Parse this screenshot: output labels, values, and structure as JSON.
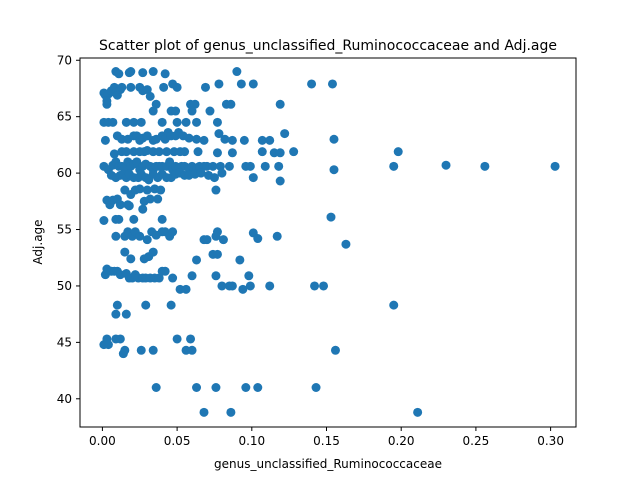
{
  "chart_data": {
    "type": "scatter",
    "title": "Scatter plot of genus_unclassified_Ruminococcaceae and Adj.age",
    "xlabel": "genus_unclassified_Ruminococcaceae",
    "ylabel": "Adj.age",
    "xlim": [
      -0.015,
      0.317
    ],
    "ylim": [
      37.5,
      70.2
    ],
    "xticks": [
      0.0,
      0.05,
      0.1,
      0.15,
      0.2,
      0.25,
      0.3
    ],
    "xtick_labels": [
      "0.00",
      "0.05",
      "0.10",
      "0.15",
      "0.20",
      "0.25",
      "0.30"
    ],
    "yticks": [
      40,
      45,
      50,
      55,
      60,
      65,
      70
    ],
    "ytick_labels": [
      "40",
      "45",
      "50",
      "55",
      "60",
      "65",
      "70"
    ],
    "grid": false,
    "marker_color": "#1f77b4",
    "points": [
      [
        0.001,
        67.1
      ],
      [
        0.002,
        66.9
      ],
      [
        0.004,
        67.0
      ],
      [
        0.006,
        67.3
      ],
      [
        0.008,
        67.6
      ],
      [
        0.009,
        67.1
      ],
      [
        0.01,
        66.9
      ],
      [
        0.012,
        67.4
      ],
      [
        0.013,
        67.6
      ],
      [
        0.019,
        67.6
      ],
      [
        0.025,
        67.6
      ],
      [
        0.027,
        67.3
      ],
      [
        0.03,
        67.4
      ],
      [
        0.032,
        66.8
      ],
      [
        0.041,
        67.6
      ],
      [
        0.047,
        67.9
      ],
      [
        0.05,
        67.6
      ],
      [
        0.069,
        67.6
      ],
      [
        0.078,
        67.9
      ],
      [
        0.093,
        67.9
      ],
      [
        0.101,
        67.9
      ],
      [
        0.14,
        67.9
      ],
      [
        0.154,
        67.9
      ],
      [
        0.009,
        69.0
      ],
      [
        0.011,
        68.8
      ],
      [
        0.018,
        68.9
      ],
      [
        0.019,
        69.0
      ],
      [
        0.027,
        68.9
      ],
      [
        0.034,
        69.0
      ],
      [
        0.042,
        68.8
      ],
      [
        0.09,
        69.0
      ],
      [
        0.003,
        66.1
      ],
      [
        0.003,
        66.4
      ],
      [
        0.036,
        66.1
      ],
      [
        0.059,
        66.1
      ],
      [
        0.062,
        66.1
      ],
      [
        0.083,
        66.1
      ],
      [
        0.086,
        66.1
      ],
      [
        0.119,
        66.1
      ],
      [
        0.001,
        64.5
      ],
      [
        0.004,
        64.5
      ],
      [
        0.007,
        64.5
      ],
      [
        0.016,
        64.5
      ],
      [
        0.021,
        64.5
      ],
      [
        0.026,
        64.5
      ],
      [
        0.04,
        64.5
      ],
      [
        0.05,
        64.5
      ],
      [
        0.056,
        64.5
      ],
      [
        0.063,
        64.5
      ],
      [
        0.077,
        64.5
      ],
      [
        0.034,
        65.5
      ],
      [
        0.046,
        65.5
      ],
      [
        0.049,
        65.5
      ],
      [
        0.06,
        65.5
      ],
      [
        0.072,
        65.5
      ],
      [
        0.002,
        62.9
      ],
      [
        0.01,
        63.3
      ],
      [
        0.013,
        63.0
      ],
      [
        0.017,
        63.0
      ],
      [
        0.021,
        63.3
      ],
      [
        0.023,
        63.3
      ],
      [
        0.025,
        62.9
      ],
      [
        0.027,
        63.1
      ],
      [
        0.03,
        63.3
      ],
      [
        0.034,
        62.9
      ],
      [
        0.036,
        63.0
      ],
      [
        0.04,
        63.3
      ],
      [
        0.042,
        63.0
      ],
      [
        0.044,
        63.6
      ],
      [
        0.046,
        63.3
      ],
      [
        0.049,
        63.3
      ],
      [
        0.051,
        63.6
      ],
      [
        0.054,
        63.3
      ],
      [
        0.058,
        63.1
      ],
      [
        0.063,
        63.0
      ],
      [
        0.068,
        62.9
      ],
      [
        0.078,
        63.5
      ],
      [
        0.082,
        63.0
      ],
      [
        0.087,
        62.9
      ],
      [
        0.095,
        62.9
      ],
      [
        0.107,
        62.9
      ],
      [
        0.112,
        62.9
      ],
      [
        0.122,
        63.5
      ],
      [
        0.155,
        63.0
      ],
      [
        0.008,
        61.7
      ],
      [
        0.013,
        61.9
      ],
      [
        0.016,
        61.9
      ],
      [
        0.021,
        61.9
      ],
      [
        0.025,
        61.9
      ],
      [
        0.028,
        61.9
      ],
      [
        0.03,
        62.0
      ],
      [
        0.034,
        61.9
      ],
      [
        0.038,
        61.9
      ],
      [
        0.043,
        61.9
      ],
      [
        0.048,
        61.9
      ],
      [
        0.052,
        61.9
      ],
      [
        0.055,
        61.9
      ],
      [
        0.064,
        61.9
      ],
      [
        0.077,
        61.8
      ],
      [
        0.087,
        61.8
      ],
      [
        0.107,
        61.9
      ],
      [
        0.115,
        61.8
      ],
      [
        0.119,
        61.8
      ],
      [
        0.128,
        61.9
      ],
      [
        0.198,
        61.9
      ],
      [
        0.001,
        60.6
      ],
      [
        0.004,
        60.3
      ],
      [
        0.007,
        60.7
      ],
      [
        0.009,
        61.0
      ],
      [
        0.011,
        60.6
      ],
      [
        0.013,
        60.6
      ],
      [
        0.015,
        60.4
      ],
      [
        0.017,
        61.0
      ],
      [
        0.019,
        60.6
      ],
      [
        0.021,
        60.8
      ],
      [
        0.023,
        61.0
      ],
      [
        0.025,
        60.3
      ],
      [
        0.027,
        60.6
      ],
      [
        0.029,
        60.8
      ],
      [
        0.032,
        60.6
      ],
      [
        0.034,
        60.3
      ],
      [
        0.036,
        60.6
      ],
      [
        0.038,
        60.6
      ],
      [
        0.04,
        60.6
      ],
      [
        0.043,
        60.6
      ],
      [
        0.045,
        61.0
      ],
      [
        0.047,
        60.3
      ],
      [
        0.049,
        60.6
      ],
      [
        0.051,
        60.4
      ],
      [
        0.053,
        60.6
      ],
      [
        0.055,
        60.6
      ],
      [
        0.058,
        60.4
      ],
      [
        0.06,
        60.6
      ],
      [
        0.063,
        60.4
      ],
      [
        0.065,
        60.6
      ],
      [
        0.068,
        60.6
      ],
      [
        0.07,
        60.6
      ],
      [
        0.074,
        60.6
      ],
      [
        0.079,
        60.6
      ],
      [
        0.085,
        60.6
      ],
      [
        0.096,
        60.6
      ],
      [
        0.099,
        60.6
      ],
      [
        0.109,
        60.6
      ],
      [
        0.118,
        60.6
      ],
      [
        0.155,
        60.3
      ],
      [
        0.195,
        60.6
      ],
      [
        0.23,
        60.7
      ],
      [
        0.256,
        60.6
      ],
      [
        0.303,
        60.6
      ],
      [
        0.006,
        59.8
      ],
      [
        0.009,
        59.6
      ],
      [
        0.012,
        59.8
      ],
      [
        0.014,
        59.9
      ],
      [
        0.016,
        59.6
      ],
      [
        0.018,
        59.9
      ],
      [
        0.021,
        59.6
      ],
      [
        0.024,
        59.6
      ],
      [
        0.026,
        59.9
      ],
      [
        0.029,
        59.6
      ],
      [
        0.031,
        59.4
      ],
      [
        0.034,
        59.9
      ],
      [
        0.037,
        59.6
      ],
      [
        0.04,
        59.9
      ],
      [
        0.043,
        59.6
      ],
      [
        0.046,
        59.6
      ],
      [
        0.049,
        59.9
      ],
      [
        0.052,
        60.0
      ],
      [
        0.055,
        59.8
      ],
      [
        0.058,
        59.8
      ],
      [
        0.062,
        59.9
      ],
      [
        0.066,
        60.0
      ],
      [
        0.071,
        59.8
      ],
      [
        0.075,
        59.6
      ],
      [
        0.08,
        60.0
      ],
      [
        0.101,
        59.6
      ],
      [
        0.119,
        59.3
      ],
      [
        0.003,
        57.6
      ],
      [
        0.005,
        57.2
      ],
      [
        0.007,
        57.6
      ],
      [
        0.01,
        57.7
      ],
      [
        0.012,
        57.2
      ],
      [
        0.015,
        58.5
      ],
      [
        0.017,
        57.2
      ],
      [
        0.019,
        58.1
      ],
      [
        0.022,
        58.5
      ],
      [
        0.025,
        58.6
      ],
      [
        0.028,
        57.5
      ],
      [
        0.03,
        58.5
      ],
      [
        0.032,
        57.7
      ],
      [
        0.035,
        58.6
      ],
      [
        0.037,
        57.7
      ],
      [
        0.039,
        58.5
      ],
      [
        0.076,
        58.5
      ],
      [
        0.001,
        55.8
      ],
      [
        0.009,
        55.9
      ],
      [
        0.011,
        55.9
      ],
      [
        0.018,
        57.1
      ],
      [
        0.021,
        55.9
      ],
      [
        0.027,
        56.8
      ],
      [
        0.04,
        55.9
      ],
      [
        0.153,
        56.1
      ],
      [
        0.009,
        54.4
      ],
      [
        0.015,
        54.4
      ],
      [
        0.017,
        54.8
      ],
      [
        0.02,
        54.4
      ],
      [
        0.022,
        54.8
      ],
      [
        0.025,
        54.4
      ],
      [
        0.03,
        54.1
      ],
      [
        0.033,
        54.8
      ],
      [
        0.036,
        54.5
      ],
      [
        0.04,
        54.8
      ],
      [
        0.042,
        54.8
      ],
      [
        0.045,
        54.4
      ],
      [
        0.047,
        54.8
      ],
      [
        0.068,
        54.1
      ],
      [
        0.07,
        54.1
      ],
      [
        0.077,
        54.8
      ],
      [
        0.076,
        54.4
      ],
      [
        0.081,
        54.1
      ],
      [
        0.101,
        54.7
      ],
      [
        0.104,
        54.2
      ],
      [
        0.117,
        54.4
      ],
      [
        0.163,
        53.7
      ],
      [
        0.015,
        53.0
      ],
      [
        0.019,
        52.4
      ],
      [
        0.028,
        52.4
      ],
      [
        0.031,
        52.6
      ],
      [
        0.034,
        53.0
      ],
      [
        0.063,
        52.3
      ],
      [
        0.074,
        52.8
      ],
      [
        0.077,
        52.8
      ],
      [
        0.092,
        52.3
      ],
      [
        0.002,
        51.0
      ],
      [
        0.003,
        51.5
      ],
      [
        0.006,
        51.3
      ],
      [
        0.008,
        51.3
      ],
      [
        0.01,
        51.3
      ],
      [
        0.012,
        51.0
      ],
      [
        0.016,
        51.1
      ],
      [
        0.018,
        50.7
      ],
      [
        0.02,
        50.7
      ],
      [
        0.022,
        51.0
      ],
      [
        0.024,
        50.7
      ],
      [
        0.027,
        50.7
      ],
      [
        0.029,
        50.7
      ],
      [
        0.032,
        50.7
      ],
      [
        0.035,
        50.7
      ],
      [
        0.038,
        50.7
      ],
      [
        0.04,
        51.3
      ],
      [
        0.042,
        51.3
      ],
      [
        0.047,
        50.7
      ],
      [
        0.06,
        50.9
      ],
      [
        0.076,
        50.9
      ],
      [
        0.098,
        50.9
      ],
      [
        0.052,
        49.7
      ],
      [
        0.056,
        49.7
      ],
      [
        0.08,
        50.0
      ],
      [
        0.085,
        50.0
      ],
      [
        0.087,
        50.0
      ],
      [
        0.094,
        49.7
      ],
      [
        0.099,
        50.0
      ],
      [
        0.112,
        50.0
      ],
      [
        0.142,
        50.0
      ],
      [
        0.148,
        50.0
      ],
      [
        0.01,
        48.3
      ],
      [
        0.029,
        48.3
      ],
      [
        0.046,
        48.3
      ],
      [
        0.195,
        48.3
      ],
      [
        0.009,
        47.5
      ],
      [
        0.016,
        47.5
      ],
      [
        0.001,
        44.8
      ],
      [
        0.003,
        45.3
      ],
      [
        0.004,
        44.8
      ],
      [
        0.009,
        45.3
      ],
      [
        0.012,
        45.3
      ],
      [
        0.014,
        44.0
      ],
      [
        0.015,
        44.3
      ],
      [
        0.026,
        44.3
      ],
      [
        0.034,
        44.3
      ],
      [
        0.05,
        45.3
      ],
      [
        0.056,
        44.3
      ],
      [
        0.059,
        45.3
      ],
      [
        0.06,
        44.3
      ],
      [
        0.156,
        44.3
      ],
      [
        0.036,
        41.0
      ],
      [
        0.063,
        41.0
      ],
      [
        0.076,
        41.0
      ],
      [
        0.096,
        41.0
      ],
      [
        0.104,
        41.0
      ],
      [
        0.143,
        41.0
      ],
      [
        0.068,
        38.8
      ],
      [
        0.086,
        38.8
      ],
      [
        0.211,
        38.8
      ]
    ]
  }
}
